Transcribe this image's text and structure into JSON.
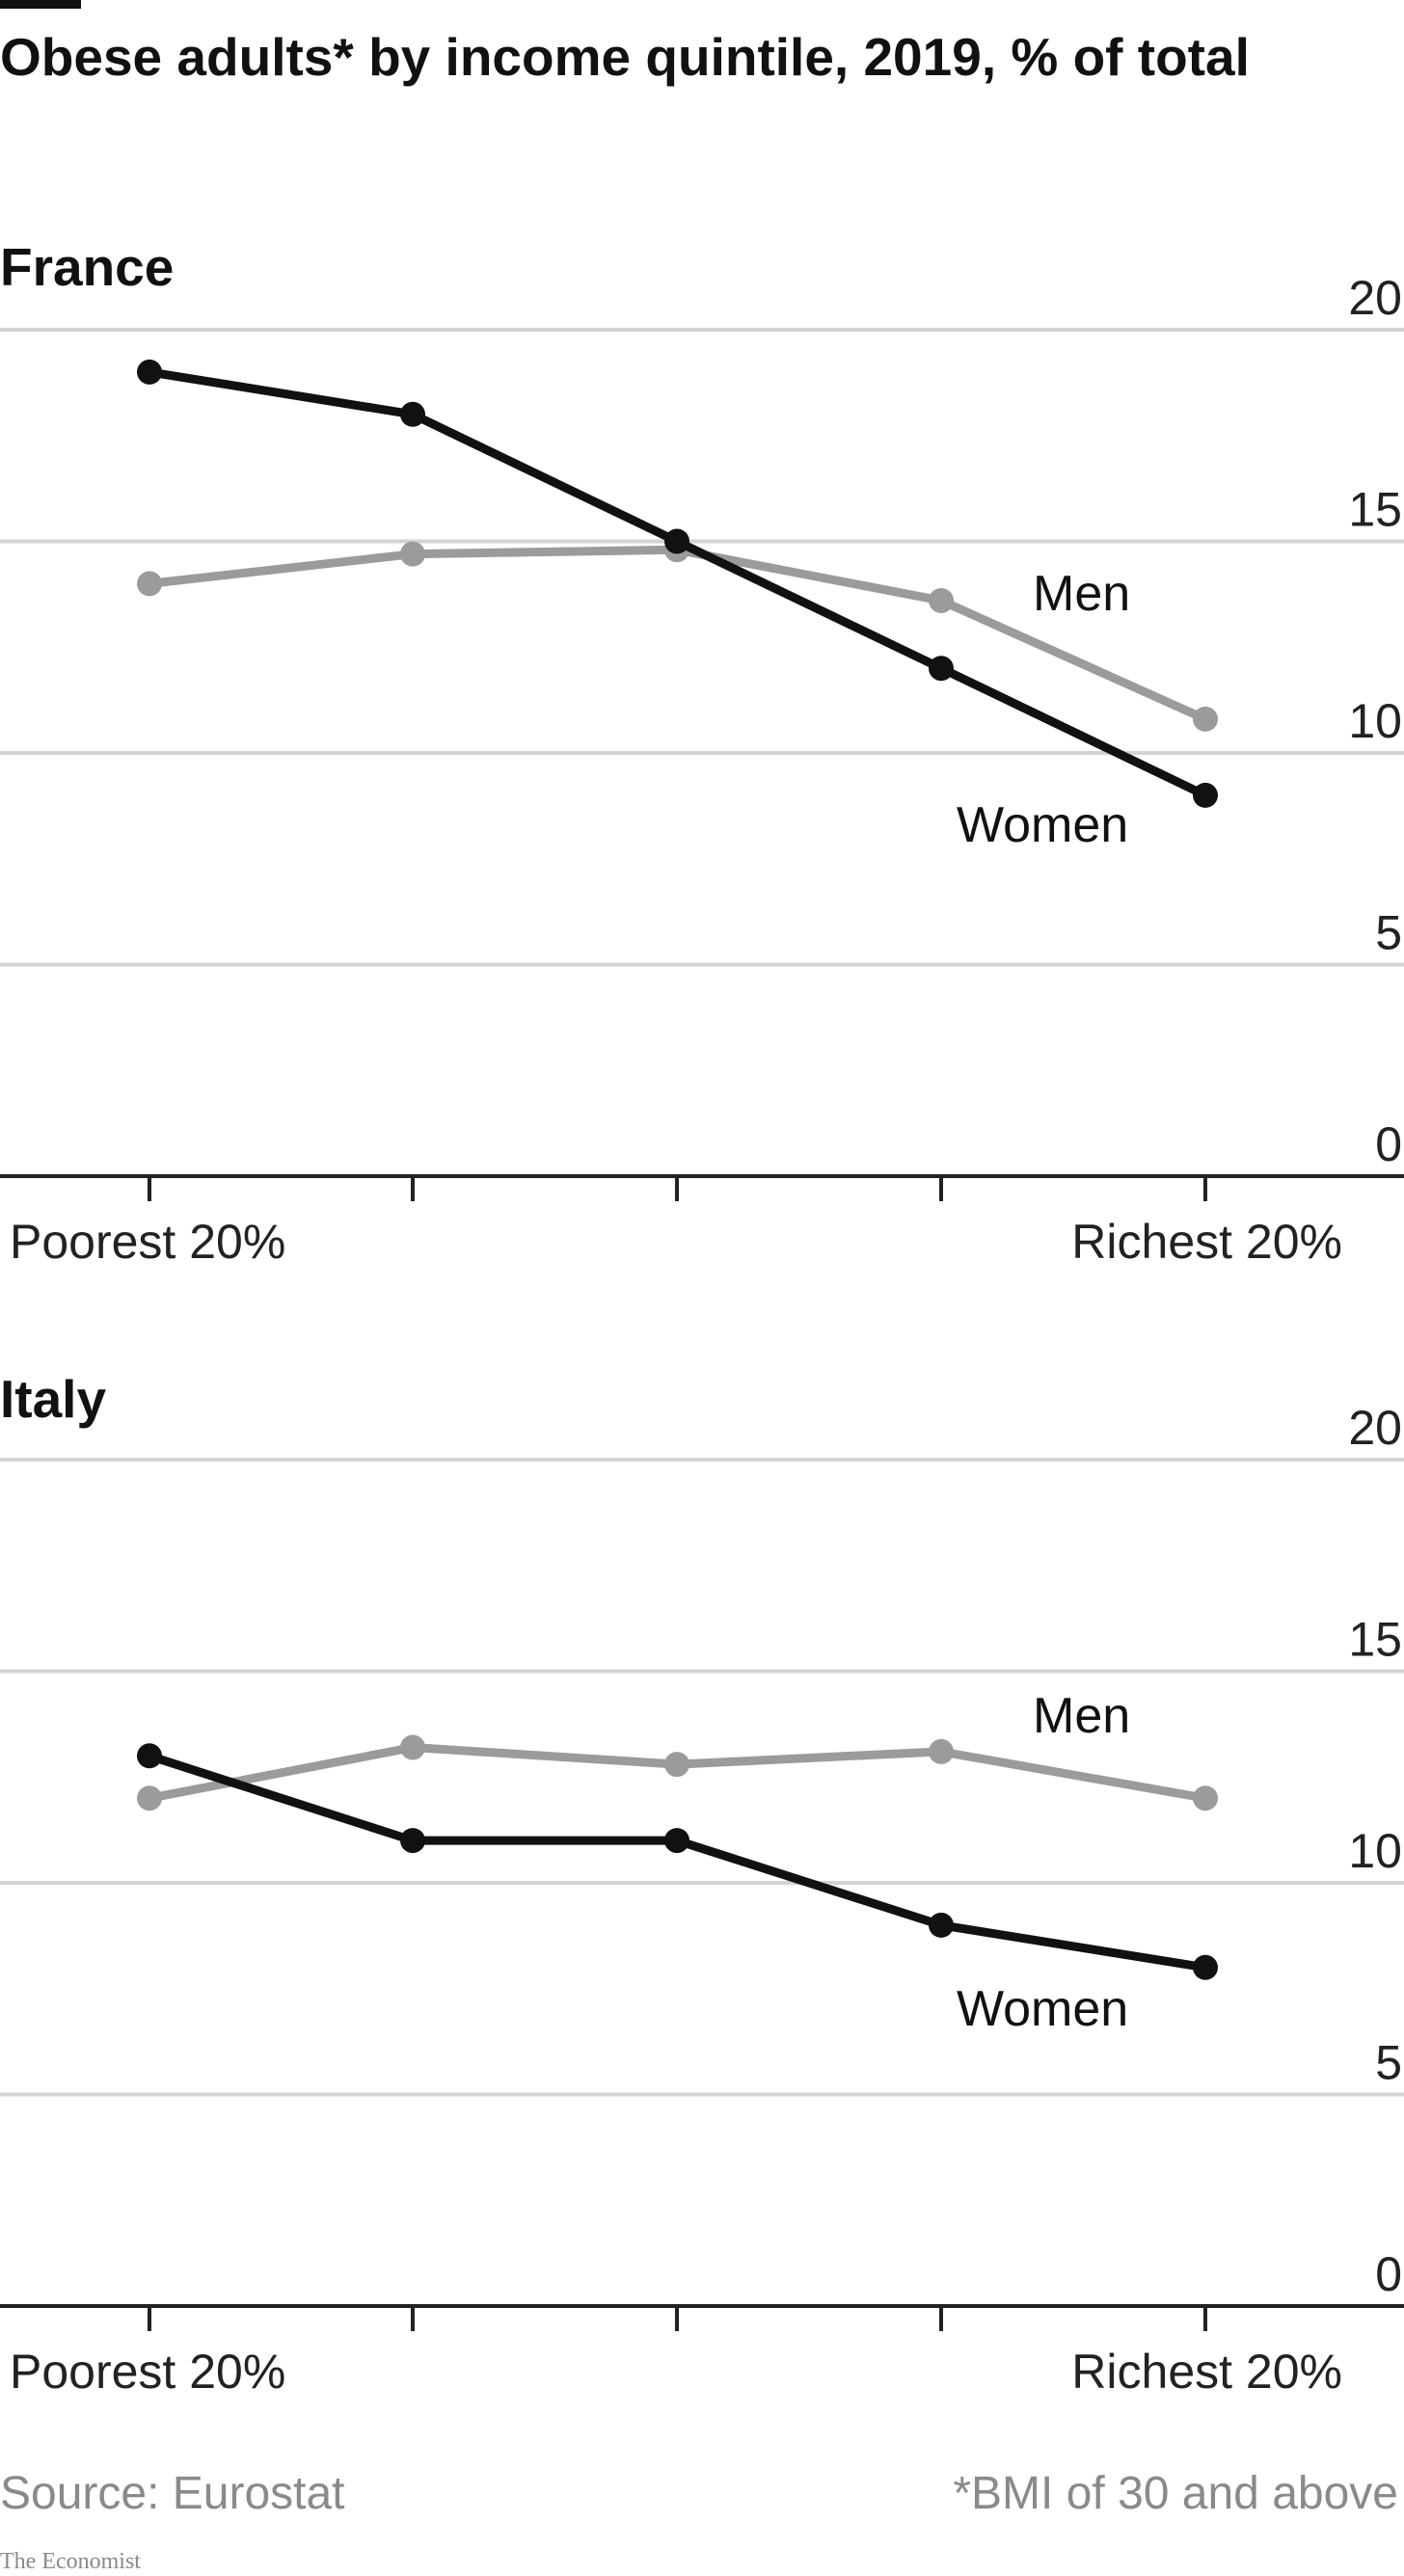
{
  "title": "Obese adults* by income quintile, 2019, % of total",
  "colors": {
    "women": "#111111",
    "men": "#9b9b9b",
    "grid": "#d3d3d3",
    "axis": "#222222",
    "accent_bar": "#111111",
    "footer": "#8a8a8a"
  },
  "chart_data": [
    {
      "type": "line",
      "title": "France",
      "x": [
        "Poorest 20%",
        "",
        "",
        "",
        "Richest 20%"
      ],
      "x_tick_labels": {
        "first": "Poorest 20%",
        "last": "Richest 20%"
      },
      "ylim": [
        0,
        20
      ],
      "yticks": [
        "20",
        "15",
        "10",
        "5",
        "0"
      ],
      "ytick_values": [
        20,
        15,
        10,
        5,
        0
      ],
      "grid": true,
      "series": [
        {
          "name": "Women",
          "key": "women",
          "values": [
            19,
            18,
            15,
            12,
            9
          ]
        },
        {
          "name": "Men",
          "key": "men",
          "values": [
            14,
            14.7,
            14.8,
            13.6,
            10.8
          ]
        }
      ]
    },
    {
      "type": "line",
      "title": "Italy",
      "x": [
        "Poorest 20%",
        "",
        "",
        "",
        "Richest 20%"
      ],
      "x_tick_labels": {
        "first": "Poorest 20%",
        "last": "Richest 20%"
      },
      "ylim": [
        0,
        20
      ],
      "yticks": [
        "20",
        "15",
        "10",
        "5",
        "0"
      ],
      "ytick_values": [
        20,
        15,
        10,
        5,
        0
      ],
      "grid": true,
      "series": [
        {
          "name": "Women",
          "key": "women",
          "values": [
            13,
            11,
            11,
            9,
            8
          ]
        },
        {
          "name": "Men",
          "key": "men",
          "values": [
            12,
            13.2,
            12.8,
            13.1,
            12
          ]
        }
      ]
    }
  ],
  "footer": {
    "source": "Source: Eurostat",
    "note": "*BMI of 30 and above",
    "brand": "The Economist"
  }
}
